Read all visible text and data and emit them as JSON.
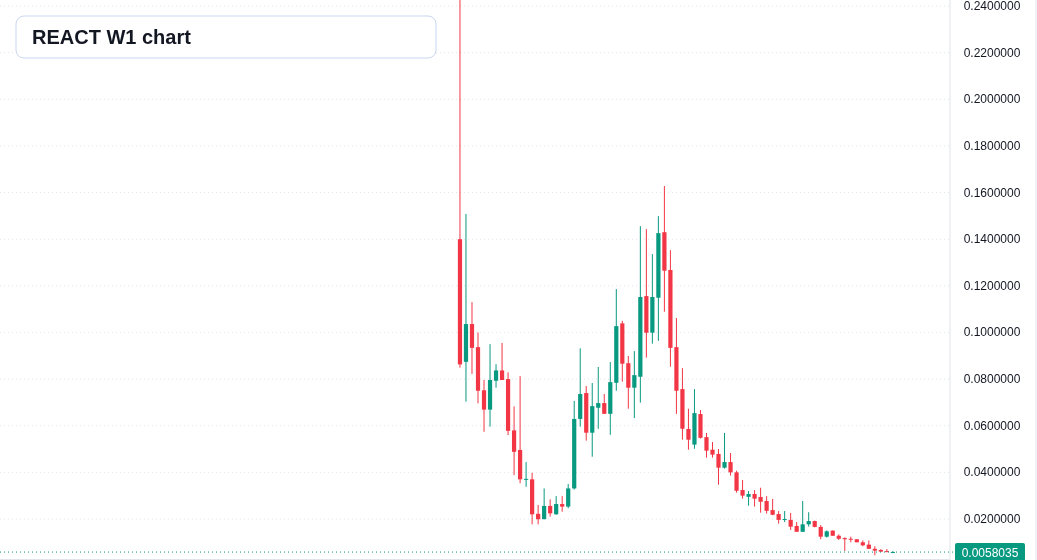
{
  "chart_data": {
    "type": "candlestick",
    "title": "REACT W1 chart",
    "categories": [
      null,
      null,
      null,
      null,
      null,
      null,
      null,
      null,
      null,
      null,
      null,
      null,
      null,
      null,
      null,
      null,
      null,
      null,
      null,
      null,
      null,
      null,
      null,
      null,
      null,
      null,
      null,
      null,
      null,
      null,
      null,
      null,
      null,
      null,
      null,
      null,
      null,
      null,
      null,
      null,
      null,
      null,
      null,
      null,
      null,
      null,
      null,
      null,
      null,
      null,
      null,
      null,
      null,
      null,
      null,
      null,
      null,
      null,
      null,
      null,
      null,
      null,
      null,
      null,
      null,
      null,
      null,
      null,
      null,
      null,
      null,
      null,
      null,
      null,
      null,
      null,
      null,
      null,
      null,
      null,
      null,
      null,
      null,
      null,
      null,
      null,
      null,
      null,
      null,
      null,
      null,
      null,
      null,
      null,
      null,
      null,
      null,
      null,
      null,
      null,
      null,
      null,
      null,
      null,
      null,
      null,
      null,
      null,
      null,
      null,
      null,
      null,
      null,
      null,
      null,
      null,
      null,
      null,
      null,
      null,
      null,
      null,
      null,
      null,
      null,
      null,
      null,
      null,
      null,
      null,
      null,
      null,
      null,
      null,
      null,
      null,
      null,
      null,
      null,
      null,
      null,
      null,
      null,
      null,
      null,
      null,
      null,
      null,
      null,
      null,
      null,
      null,
      null,
      null,
      null,
      null,
      null,
      null
    ],
    "ohlc": [
      null,
      null,
      null,
      null,
      null,
      null,
      null,
      null,
      null,
      null,
      null,
      null,
      null,
      null,
      null,
      null,
      null,
      null,
      null,
      null,
      null,
      null,
      null,
      null,
      null,
      null,
      null,
      null,
      null,
      null,
      null,
      null,
      null,
      null,
      null,
      null,
      null,
      null,
      null,
      null,
      null,
      null,
      null,
      null,
      null,
      null,
      null,
      null,
      null,
      null,
      null,
      null,
      null,
      null,
      null,
      null,
      null,
      null,
      null,
      null,
      null,
      null,
      null,
      null,
      null,
      null,
      null,
      null,
      null,
      null,
      null,
      null,
      null,
      null,
      null,
      null,
      [
        0.14,
        0.2426,
        0.0849,
        0.0863
      ],
      [
        0.0874,
        0.1508,
        0.0703,
        0.1036
      ],
      [
        0.1036,
        0.113,
        0.0822,
        0.0934
      ],
      [
        0.0937,
        0.1,
        0.0696,
        0.075
      ],
      [
        0.0752,
        0.0796,
        0.0574,
        0.0669
      ],
      [
        0.0669,
        0.095,
        0.0596,
        0.0796
      ],
      [
        0.0793,
        0.0864,
        0.0763,
        0.0837
      ],
      [
        0.0837,
        0.0955,
        0.0796,
        0.0796
      ],
      [
        0.08,
        0.0829,
        0.056,
        0.0578
      ],
      [
        0.058,
        0.0683,
        0.0388,
        0.0488
      ],
      [
        0.0496,
        0.0813,
        0.0353,
        0.037
      ],
      [
        0.037,
        0.0444,
        0.0338,
        0.0372
      ],
      [
        0.037,
        0.0398,
        0.0177,
        0.022
      ],
      [
        0.0222,
        0.026,
        0.0177,
        0.0199
      ],
      [
        0.0199,
        0.0331,
        0.0199,
        0.0256
      ],
      [
        0.0256,
        0.0284,
        0.021,
        0.0224
      ],
      [
        0.022,
        0.0298,
        0.0218,
        0.0264
      ],
      [
        0.0264,
        0.0298,
        0.0231,
        0.0253
      ],
      [
        0.0253,
        0.035,
        0.0246,
        0.0331
      ],
      [
        0.0331,
        0.0706,
        0.0326,
        0.0629
      ],
      [
        0.0629,
        0.0932,
        0.0596,
        0.0736
      ],
      [
        0.074,
        0.077,
        0.0536,
        0.057
      ],
      [
        0.057,
        0.0783,
        0.0467,
        0.0684
      ],
      [
        0.0677,
        0.0852,
        0.0587,
        0.0697
      ],
      [
        0.0697,
        0.0736,
        0.0651,
        0.0651
      ],
      [
        0.0651,
        0.0873,
        0.0561,
        0.0787
      ],
      [
        0.0784,
        0.1186,
        0.075,
        0.1027
      ],
      [
        0.1039,
        0.105,
        0.0789,
        0.0866
      ],
      [
        0.0868,
        0.0899,
        0.0673,
        0.0763
      ],
      [
        0.0763,
        0.092,
        0.0633,
        0.0817
      ],
      [
        0.081,
        0.1456,
        0.0699,
        0.1152
      ],
      [
        0.1156,
        0.1443,
        0.0892,
        0.0999
      ],
      [
        0.0999,
        0.1336,
        0.0952,
        0.1152
      ],
      [
        0.1149,
        0.1499,
        0.0964,
        0.1426
      ],
      [
        0.143,
        0.1628,
        0.1089,
        0.1265
      ],
      [
        0.1268,
        0.1353,
        0.0853,
        0.0934
      ],
      [
        0.0937,
        0.1062,
        0.0651,
        0.075
      ],
      [
        0.0757,
        0.0847,
        0.054,
        0.0587
      ],
      [
        0.0586,
        0.0673,
        0.0497,
        0.054
      ],
      [
        0.0519,
        0.0757,
        0.0501,
        0.0654
      ],
      [
        0.065,
        0.0667,
        0.0545,
        0.0548
      ],
      [
        0.0551,
        0.0569,
        0.0463,
        0.0493
      ],
      [
        0.0497,
        0.053,
        0.0463,
        0.0476
      ],
      [
        0.0479,
        0.05,
        0.0347,
        0.042
      ],
      [
        0.042,
        0.0569,
        0.0416,
        0.0444
      ],
      [
        0.0444,
        0.0483,
        0.0386,
        0.04
      ],
      [
        0.04,
        0.0407,
        0.0313,
        0.0321
      ],
      [
        0.0324,
        0.0367,
        0.0287,
        0.03
      ],
      [
        0.0295,
        0.032,
        0.0257,
        0.0307
      ],
      [
        0.0307,
        0.0324,
        0.0253,
        0.0287
      ],
      [
        0.0294,
        0.0334,
        0.0227,
        0.0274
      ],
      [
        0.0277,
        0.0298,
        0.0223,
        0.0235
      ],
      [
        0.0238,
        0.0286,
        0.0216,
        0.0218
      ],
      [
        0.0221,
        0.0234,
        0.018,
        0.0196
      ],
      [
        0.0197,
        0.0234,
        0.0187,
        0.02
      ],
      [
        0.0196,
        0.0226,
        0.0153,
        0.0167
      ],
      [
        0.017,
        0.0187,
        0.0145,
        0.0145
      ],
      [
        0.0145,
        0.0277,
        0.0145,
        0.0177
      ],
      [
        0.0177,
        0.0229,
        0.0167,
        0.0191
      ],
      [
        0.0191,
        0.0193,
        0.0164,
        0.0166
      ],
      [
        0.0166,
        0.0174,
        0.0113,
        0.0124
      ],
      [
        0.0124,
        0.0151,
        0.012,
        0.0147
      ],
      [
        0.015,
        0.0151,
        0.0128,
        0.0128
      ],
      [
        0.0128,
        0.0134,
        0.011,
        0.0115
      ],
      [
        0.0118,
        0.0121,
        0.0063,
        0.0113
      ],
      [
        0.0115,
        0.0124,
        0.01,
        0.0113
      ],
      [
        0.0113,
        0.0113,
        0.01,
        0.01
      ],
      [
        0.01,
        0.0108,
        0.0083,
        0.0087
      ],
      [
        0.009,
        0.0108,
        0.0071,
        0.0072
      ],
      [
        0.0072,
        0.0083,
        0.0044,
        0.0064
      ],
      [
        0.0067,
        0.0071,
        0.0058,
        0.006
      ],
      [
        0.0062,
        0.0071,
        0.0058,
        0.0059
      ],
      [
        0.0057,
        0.0062,
        0.0056,
        0.0058035
      ],
      null,
      null,
      null,
      null,
      null,
      null,
      null,
      null,
      null
    ],
    "ylim": [
      0.0024,
      0.2426
    ],
    "yticks": [
      {
        "value": 0.02,
        "label": "0.0200000"
      },
      {
        "value": 0.04,
        "label": "0.0400000"
      },
      {
        "value": 0.06,
        "label": "0.0600000"
      },
      {
        "value": 0.08,
        "label": "0.0800000"
      },
      {
        "value": 0.1,
        "label": "0.1000000"
      },
      {
        "value": 0.12,
        "label": "0.1200000"
      },
      {
        "value": 0.14,
        "label": "0.1400000"
      },
      {
        "value": 0.16,
        "label": "0.1600000"
      },
      {
        "value": 0.18,
        "label": "0.1800000"
      },
      {
        "value": 0.2,
        "label": "0.2000000"
      },
      {
        "value": 0.22,
        "label": "0.2200000"
      },
      {
        "value": 0.24,
        "label": "0.2400000"
      }
    ],
    "ref_lines": [
      {
        "axis": "y",
        "value": 0.0058035,
        "label": "0.0058035",
        "color": "#089981",
        "line_style": "dotted"
      }
    ],
    "grid": "y",
    "tick_labels": "y"
  }
}
